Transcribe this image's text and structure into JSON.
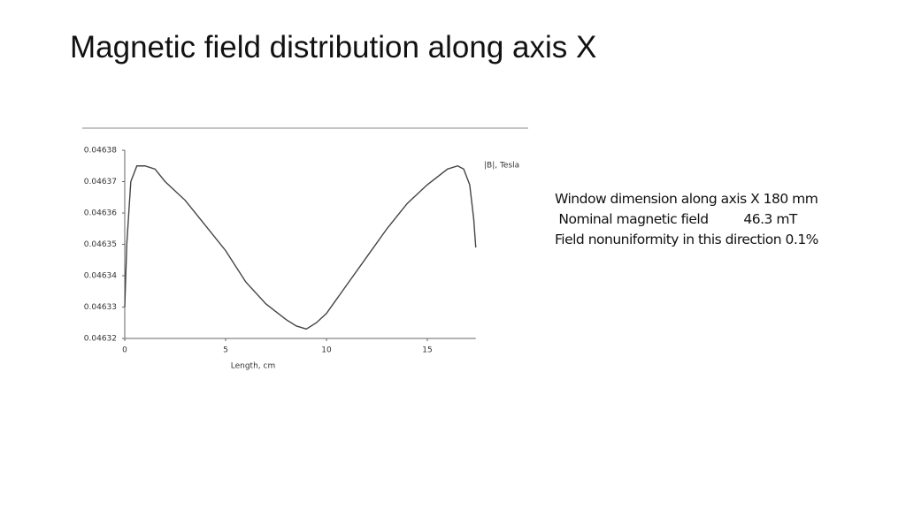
{
  "slide": {
    "title": "Magnetic field distribution along axis X"
  },
  "chart_data": {
    "type": "line",
    "xlabel": "Length, cm",
    "x": [
      0,
      0.1,
      0.3,
      0.6,
      1,
      1.5,
      2,
      3,
      4,
      5,
      6,
      7,
      8,
      8.5,
      9,
      9.5,
      10,
      11,
      12,
      13,
      14,
      15,
      16,
      16.5,
      16.8,
      17.1,
      17.3,
      17.4
    ],
    "series": [
      {
        "name": "|B|, Tesla",
        "color": "#444444",
        "values": [
          0.04633,
          0.04635,
          0.04637,
          0.046375,
          0.046375,
          0.046374,
          0.04637,
          0.046364,
          0.046356,
          0.046348,
          0.046338,
          0.046331,
          0.046326,
          0.046324,
          0.046323,
          0.046325,
          0.046328,
          0.046337,
          0.046346,
          0.046355,
          0.046363,
          0.046369,
          0.046374,
          0.046375,
          0.046374,
          0.046369,
          0.046358,
          0.046349
        ]
      }
    ],
    "xlim": [
      0,
      17.4
    ],
    "xticks": [
      0,
      5,
      10,
      15
    ],
    "ylim": [
      0.04632,
      0.04638
    ],
    "yticks": [
      0.04632,
      0.04633,
      0.04634,
      0.04635,
      0.04636,
      0.04637,
      0.04638
    ],
    "grid": false
  },
  "notes": [
    "Window dimension along axis X 180 mm",
    " Nominal magnetic field         46.3 mT",
    "Field nonuniformity in this direction 0.1%"
  ]
}
